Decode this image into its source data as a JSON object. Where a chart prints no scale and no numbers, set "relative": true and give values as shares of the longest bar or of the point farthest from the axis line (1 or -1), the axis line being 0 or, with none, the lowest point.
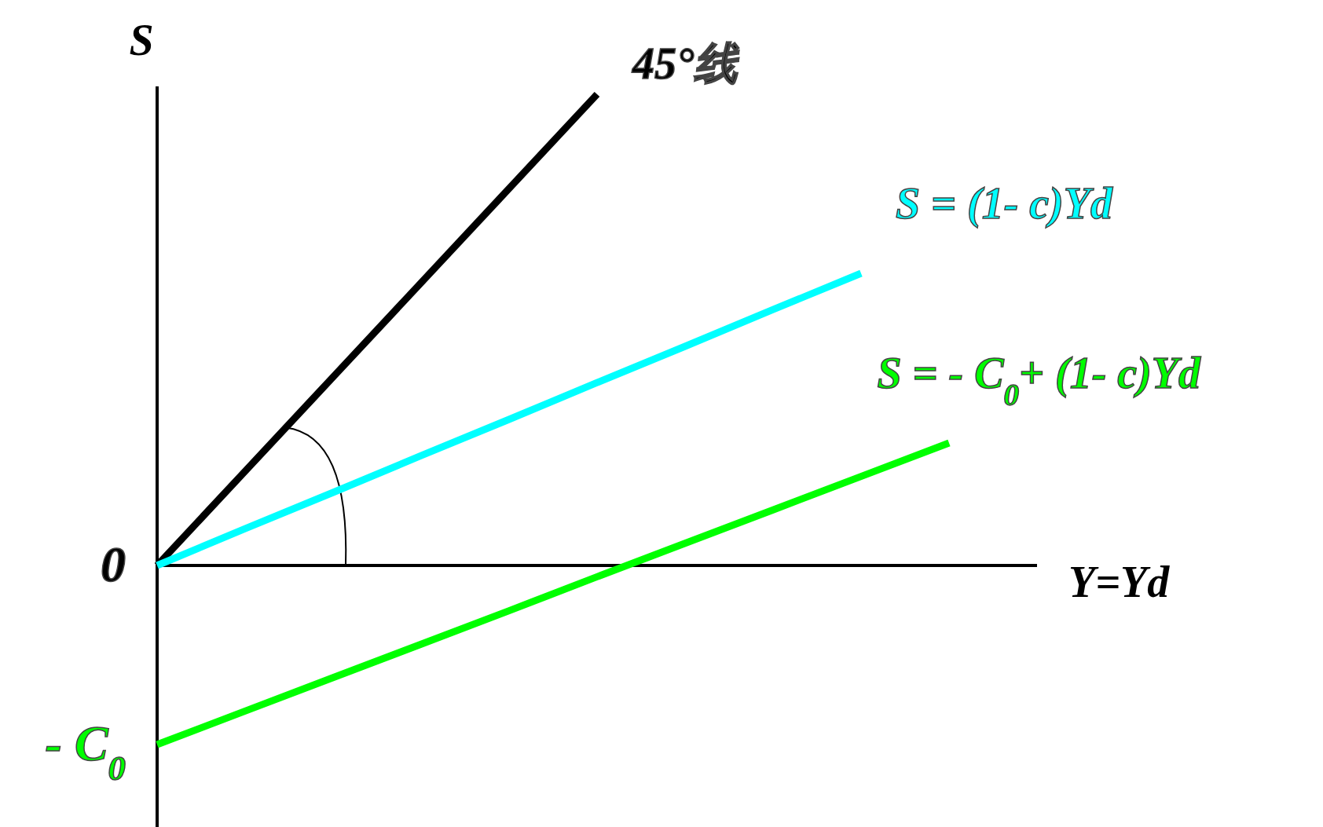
{
  "chart_data": {
    "type": "line",
    "relative": true,
    "xlabel": "Y=Yd",
    "ylabel": "S",
    "legend": false,
    "marker": "none",
    "line_style": "solid",
    "categories": [
      null,
      null,
      null,
      null,
      null,
      null,
      null,
      null,
      null,
      null,
      null
    ],
    "annotations": [
      "0",
      "- C$_{0}$"
    ],
    "series": [
      {
        "name": "45°线",
        "color": "#000000",
        "values": [
          0,
          0.2,
          0.4,
          0.6,
          0.8,
          1,
          null,
          null,
          null,
          null,
          null
        ]
      },
      {
        "name": "S = (1- c)Yd",
        "color": "#00ffff",
        "values": [
          0,
          0.078,
          0.155,
          0.233,
          0.31,
          0.388,
          0.465,
          0.543,
          0.62,
          null,
          null
        ]
      },
      {
        "name": "S = - C$_{0}$+ (1- c)Yd",
        "color": "#00ff00",
        "values": [
          -0.38,
          -0.309,
          -0.238,
          -0.167,
          -0.096,
          -0.024,
          0.047,
          0.118,
          0.189,
          0.26,
          null
        ]
      }
    ]
  }
}
